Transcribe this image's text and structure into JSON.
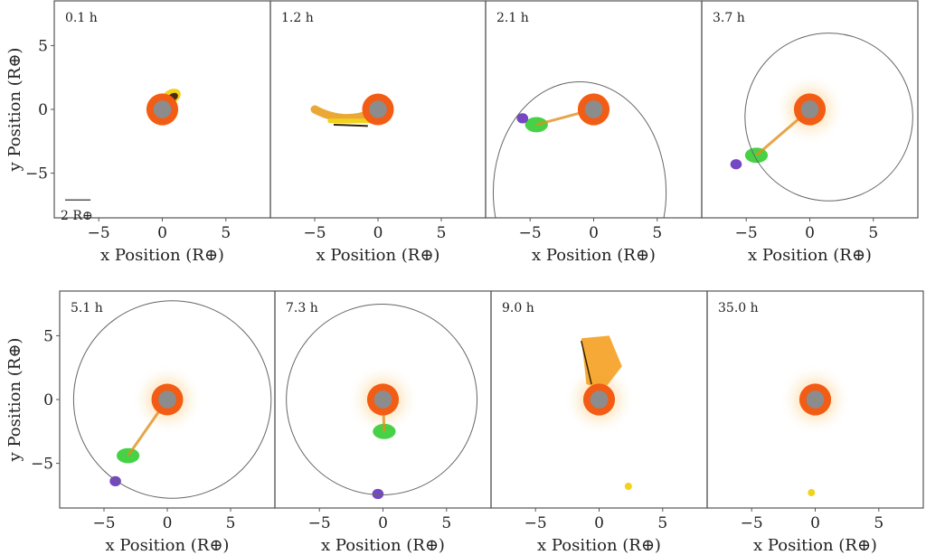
{
  "chart_data": {
    "type": "scatter",
    "title": "",
    "xlabel": "x Position (R⊕)",
    "ylabel": "y Position (R⊕)",
    "xlim": [
      -8.5,
      8.5
    ],
    "ylim": [
      -8.5,
      8.5
    ],
    "xticks": [
      "−5",
      "0",
      "5"
    ],
    "yticks": [
      "5",
      "0",
      "−5"
    ],
    "tick_values": [
      -5,
      0,
      5
    ],
    "scale_bar": {
      "label": "2 R⊕",
      "length": 2
    },
    "colors": {
      "core": "#8c8c8c",
      "mantle": "#f25c14",
      "halo": "#f5a020",
      "debris_yellow": "#f3d21a",
      "green": "#33cc33",
      "purple": "#6633bb",
      "orbit": "#666666"
    },
    "panels": [
      {
        "time": "0.1 h",
        "planet": [
          0,
          0
        ],
        "orbit": null,
        "features": [
          {
            "kind": "impactor",
            "x": 0.7,
            "y": 1.0,
            "color": "yellow"
          }
        ]
      },
      {
        "time": "1.2 h",
        "planet": [
          0,
          0
        ],
        "orbit": null,
        "features": [
          {
            "kind": "arm",
            "x0": -5,
            "y0": 0,
            "x1": -0.5,
            "y1": -0.3,
            "color": "yellow"
          }
        ]
      },
      {
        "time": "2.1 h",
        "planet": [
          0,
          0
        ],
        "orbit": {
          "cx": -1.1,
          "cy": -6.5,
          "rx": 6.8,
          "ry": 8.7
        },
        "features": [
          {
            "kind": "clump",
            "x": -4.5,
            "y": -1.2,
            "color": "green"
          },
          {
            "kind": "clump",
            "x": -5.6,
            "y": -0.7,
            "color": "purple"
          }
        ]
      },
      {
        "time": "3.7 h",
        "planet": [
          0,
          0
        ],
        "orbit": {
          "cx": 1.5,
          "cy": -0.6,
          "rx": 6.6,
          "ry": 6.6
        },
        "features": [
          {
            "kind": "clump",
            "x": -4.2,
            "y": -3.6,
            "color": "green"
          },
          {
            "kind": "clump",
            "x": -5.8,
            "y": -4.3,
            "color": "purple"
          }
        ]
      },
      {
        "time": "5.1 h",
        "planet": [
          0,
          0
        ],
        "orbit": {
          "cx": 0.4,
          "cy": 0,
          "rx": 7.8,
          "ry": 7.8
        },
        "features": [
          {
            "kind": "clump",
            "x": -3.1,
            "y": -4.4,
            "color": "green"
          },
          {
            "kind": "clump",
            "x": -4.1,
            "y": -6.4,
            "color": "purple"
          }
        ]
      },
      {
        "time": "7.3 h",
        "planet": [
          0,
          0
        ],
        "orbit": {
          "cx": -0.1,
          "cy": 0,
          "rx": 7.5,
          "ry": 7.5
        },
        "features": [
          {
            "kind": "clump",
            "x": 0.1,
            "y": -2.5,
            "color": "green"
          },
          {
            "kind": "clump",
            "x": -0.4,
            "y": -7.4,
            "color": "purple"
          }
        ]
      },
      {
        "time": "9.0 h",
        "planet": [
          0,
          0
        ],
        "orbit": null,
        "features": [
          {
            "kind": "plume",
            "x": -0.3,
            "y": 2.5,
            "color": "halo"
          },
          {
            "kind": "moonlet",
            "x": 2.3,
            "y": -6.8,
            "color": "yellow"
          }
        ]
      },
      {
        "time": "35.0 h",
        "planet": [
          0,
          0
        ],
        "orbit": null,
        "features": [
          {
            "kind": "moonlet",
            "x": -0.3,
            "y": -7.3,
            "color": "yellow"
          }
        ]
      }
    ]
  }
}
